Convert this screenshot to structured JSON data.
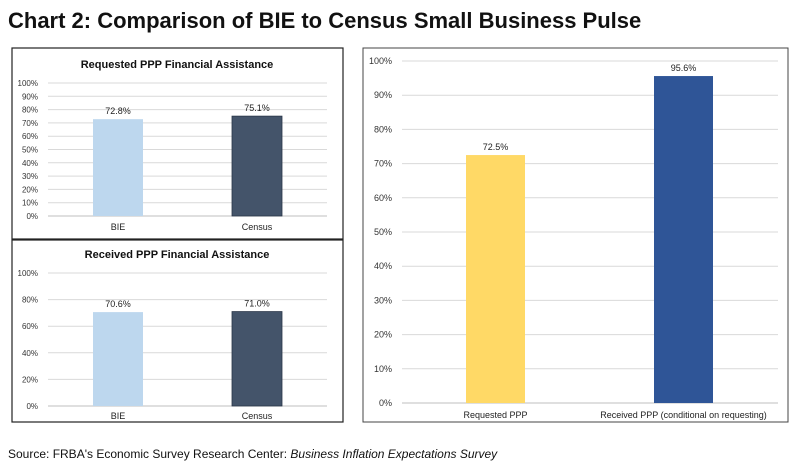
{
  "title": "Chart 2: Comparison of BIE to Census Small Business Pulse",
  "source": {
    "prefix": "Source:  FRBA's Economic Survey Research Center: ",
    "italic": "Business Inflation Expectations Survey"
  },
  "chart_data": [
    {
      "type": "bar",
      "title": "Requested PPP Financial Assistance",
      "categories": [
        "BIE",
        "Census"
      ],
      "values": [
        72.8,
        75.1
      ],
      "data_labels": [
        "72.8%",
        "75.1%"
      ],
      "colors": [
        "#bdd7ee",
        "#44546a"
      ],
      "ylim": [
        0,
        100
      ],
      "yticks": [
        "0%",
        "10%",
        "20%",
        "30%",
        "40%",
        "50%",
        "60%",
        "70%",
        "80%",
        "90%",
        "100%"
      ],
      "grid": true
    },
    {
      "type": "bar",
      "title": "Received PPP Financial Assistance",
      "categories": [
        "BIE",
        "Census"
      ],
      "values": [
        70.6,
        71.0
      ],
      "data_labels": [
        "70.6%",
        "71.0%"
      ],
      "colors": [
        "#bdd7ee",
        "#44546a"
      ],
      "ylim": [
        0,
        100
      ],
      "yticks": [
        "0%",
        "20%",
        "40%",
        "60%",
        "80%",
        "100%"
      ],
      "grid": true
    },
    {
      "type": "bar",
      "title": "",
      "categories": [
        "Requested PPP",
        "Received PPP (conditional on requesting)"
      ],
      "values": [
        72.5,
        95.6
      ],
      "data_labels": [
        "72.5%",
        "95.6%"
      ],
      "colors": [
        "#ffd966",
        "#2f5597"
      ],
      "ylim": [
        0,
        100
      ],
      "yticks": [
        "0%",
        "10%",
        "20%",
        "30%",
        "40%",
        "50%",
        "60%",
        "70%",
        "80%",
        "90%",
        "100%"
      ],
      "grid": true
    }
  ]
}
